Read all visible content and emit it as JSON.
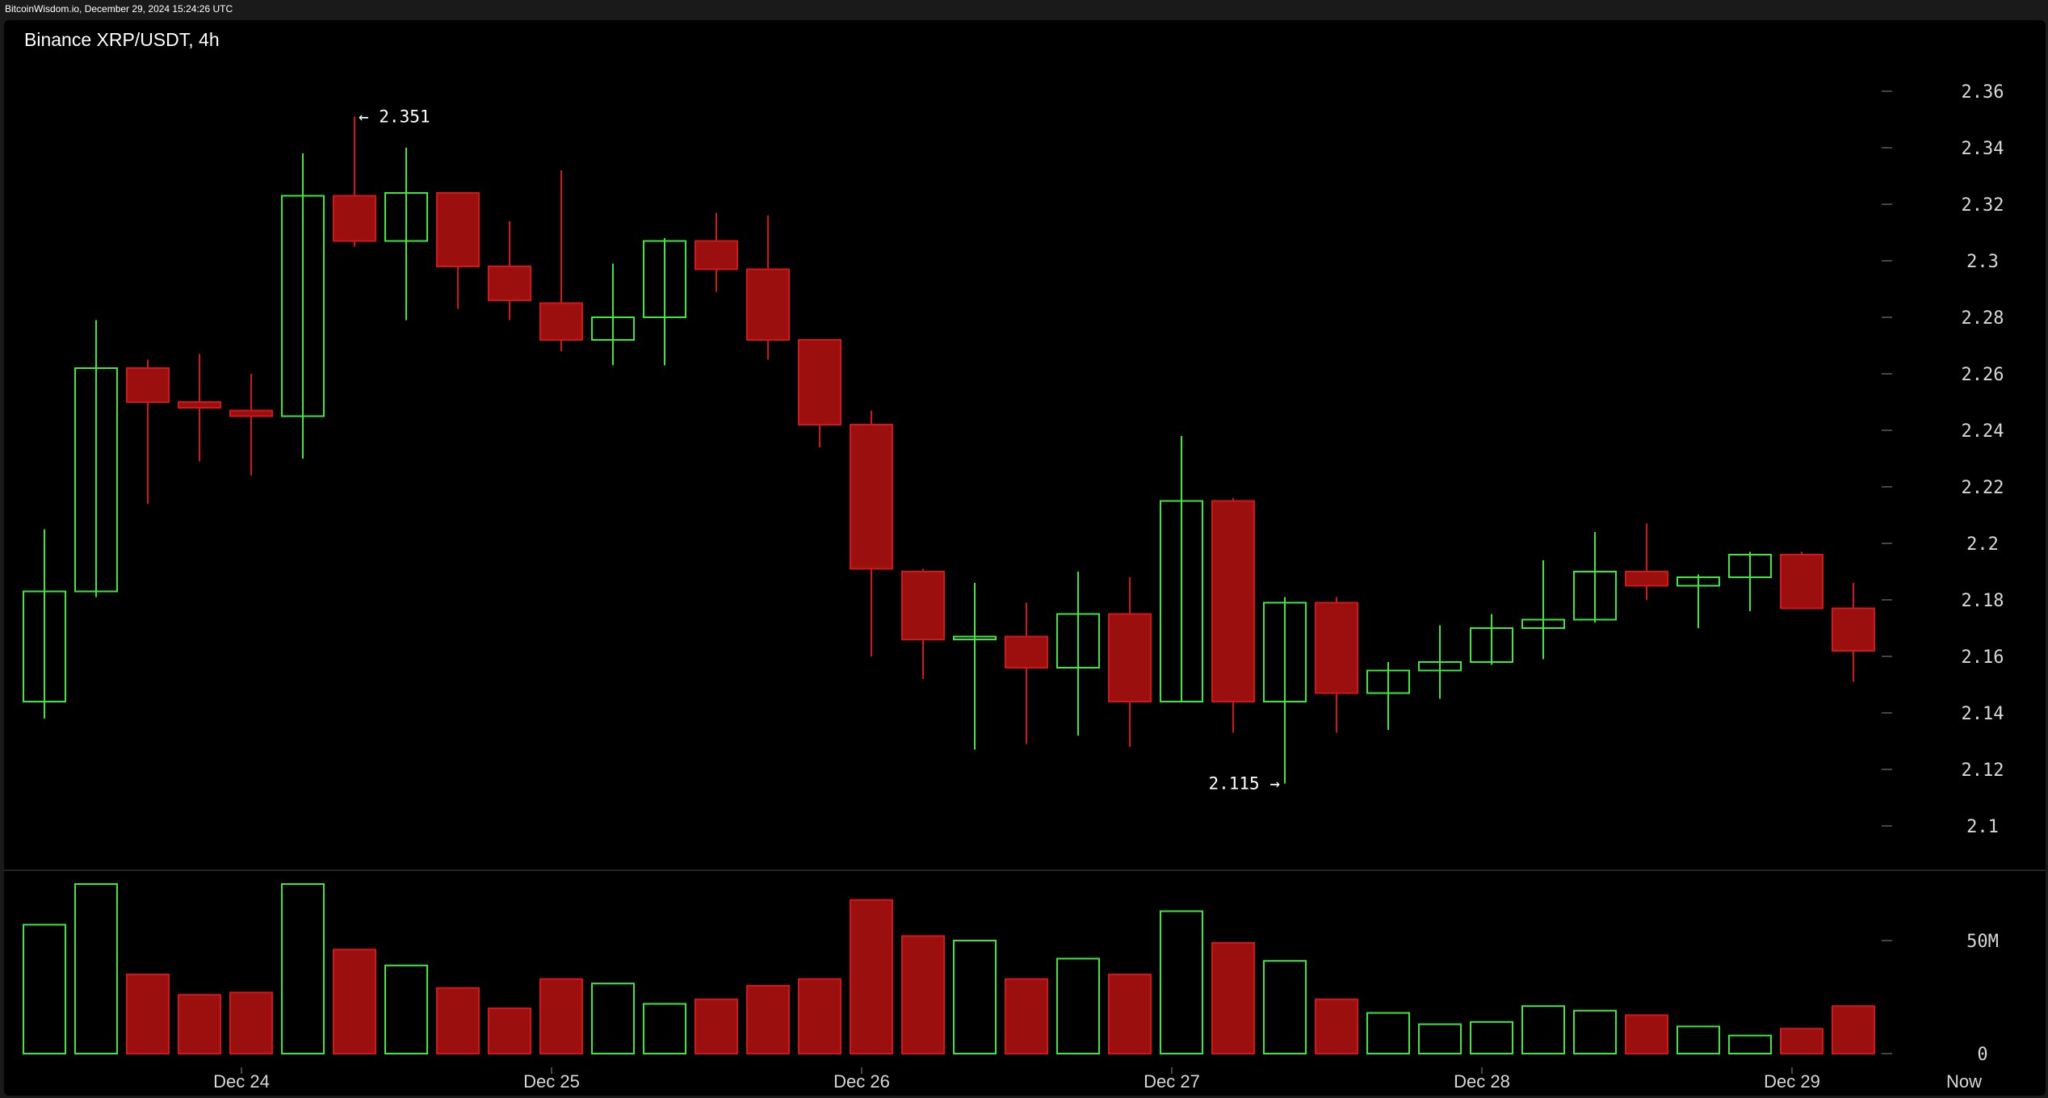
{
  "watermark": "BitcoinWisdom.io, December 29, 2024 15:24:26 UTC",
  "title": "Binance XRP/USDT, 4h",
  "colors": {
    "up": "#3ee63e",
    "down": "#9b0f0f",
    "down_stroke": "#d01818",
    "axis_text": "#d8d8d8",
    "background": "#000000"
  },
  "chart_data": {
    "type": "candlestick",
    "title": "Binance XRP/USDT, 4h",
    "price_axis": {
      "ticks": [
        "2.36",
        "2.34",
        "2.32",
        "2.3",
        "2.28",
        "2.26",
        "2.24",
        "2.22",
        "2.2",
        "2.18",
        "2.16",
        "2.14",
        "2.12",
        "2.1"
      ],
      "range": [
        2.094,
        2.371
      ]
    },
    "volume_axis": {
      "ticks": [
        "50M",
        "0"
      ],
      "tick_values": [
        50,
        0
      ],
      "unit": "M"
    },
    "x_labels": [
      {
        "label": "Dec 24",
        "at_candle": 4
      },
      {
        "label": "Dec 25",
        "at_candle": 10
      },
      {
        "label": "Dec 26",
        "at_candle": 16
      },
      {
        "label": "Dec 27",
        "at_candle": 22
      },
      {
        "label": "Dec 28",
        "at_candle": 28
      },
      {
        "label": "Dec 29",
        "at_candle": 34
      }
    ],
    "now_label": "Now",
    "annotations": {
      "high": {
        "text": "← 2.351",
        "value": 2.351,
        "candle": 6
      },
      "low": {
        "text": "2.115 →",
        "value": 2.115,
        "candle": 24
      }
    },
    "candles": [
      {
        "o": 2.144,
        "h": 2.205,
        "l": 2.138,
        "c": 2.183,
        "v": 57
      },
      {
        "o": 2.183,
        "h": 2.279,
        "l": 2.181,
        "c": 2.262,
        "v": 75
      },
      {
        "o": 2.262,
        "h": 2.265,
        "l": 2.214,
        "c": 2.25,
        "v": 35
      },
      {
        "o": 2.25,
        "h": 2.267,
        "l": 2.229,
        "c": 2.248,
        "v": 26
      },
      {
        "o": 2.247,
        "h": 2.26,
        "l": 2.224,
        "c": 2.245,
        "v": 27
      },
      {
        "o": 2.245,
        "h": 2.338,
        "l": 2.23,
        "c": 2.323,
        "v": 75
      },
      {
        "o": 2.323,
        "h": 2.351,
        "l": 2.305,
        "c": 2.307,
        "v": 46
      },
      {
        "o": 2.307,
        "h": 2.34,
        "l": 2.279,
        "c": 2.324,
        "v": 39
      },
      {
        "o": 2.324,
        "h": 2.324,
        "l": 2.283,
        "c": 2.298,
        "v": 29
      },
      {
        "o": 2.298,
        "h": 2.314,
        "l": 2.279,
        "c": 2.286,
        "v": 20
      },
      {
        "o": 2.285,
        "h": 2.332,
        "l": 2.268,
        "c": 2.272,
        "v": 33
      },
      {
        "o": 2.272,
        "h": 2.299,
        "l": 2.263,
        "c": 2.28,
        "v": 31
      },
      {
        "o": 2.28,
        "h": 2.308,
        "l": 2.263,
        "c": 2.307,
        "v": 22
      },
      {
        "o": 2.307,
        "h": 2.317,
        "l": 2.289,
        "c": 2.297,
        "v": 24
      },
      {
        "o": 2.297,
        "h": 2.316,
        "l": 2.265,
        "c": 2.272,
        "v": 30
      },
      {
        "o": 2.272,
        "h": 2.272,
        "l": 2.234,
        "c": 2.242,
        "v": 33
      },
      {
        "o": 2.242,
        "h": 2.247,
        "l": 2.16,
        "c": 2.191,
        "v": 68
      },
      {
        "o": 2.19,
        "h": 2.191,
        "l": 2.152,
        "c": 2.166,
        "v": 52
      },
      {
        "o": 2.166,
        "h": 2.186,
        "l": 2.127,
        "c": 2.167,
        "v": 50
      },
      {
        "o": 2.167,
        "h": 2.179,
        "l": 2.129,
        "c": 2.156,
        "v": 33
      },
      {
        "o": 2.156,
        "h": 2.19,
        "l": 2.132,
        "c": 2.175,
        "v": 42
      },
      {
        "o": 2.175,
        "h": 2.188,
        "l": 2.128,
        "c": 2.144,
        "v": 35
      },
      {
        "o": 2.144,
        "h": 2.238,
        "l": 2.144,
        "c": 2.215,
        "v": 63
      },
      {
        "o": 2.215,
        "h": 2.216,
        "l": 2.133,
        "c": 2.144,
        "v": 49
      },
      {
        "o": 2.144,
        "h": 2.181,
        "l": 2.115,
        "c": 2.179,
        "v": 41
      },
      {
        "o": 2.179,
        "h": 2.181,
        "l": 2.133,
        "c": 2.147,
        "v": 24
      },
      {
        "o": 2.147,
        "h": 2.158,
        "l": 2.134,
        "c": 2.155,
        "v": 18
      },
      {
        "o": 2.155,
        "h": 2.171,
        "l": 2.145,
        "c": 2.158,
        "v": 13
      },
      {
        "o": 2.158,
        "h": 2.175,
        "l": 2.157,
        "c": 2.17,
        "v": 14
      },
      {
        "o": 2.17,
        "h": 2.194,
        "l": 2.159,
        "c": 2.173,
        "v": 21
      },
      {
        "o": 2.173,
        "h": 2.204,
        "l": 2.172,
        "c": 2.19,
        "v": 19
      },
      {
        "o": 2.19,
        "h": 2.207,
        "l": 2.18,
        "c": 2.185,
        "v": 17
      },
      {
        "o": 2.185,
        "h": 2.189,
        "l": 2.17,
        "c": 2.188,
        "v": 12
      },
      {
        "o": 2.188,
        "h": 2.197,
        "l": 2.176,
        "c": 2.196,
        "v": 8
      },
      {
        "o": 2.196,
        "h": 2.197,
        "l": 2.177,
        "c": 2.177,
        "v": 11
      },
      {
        "o": 2.177,
        "h": 2.186,
        "l": 2.151,
        "c": 2.162,
        "v": 21
      }
    ]
  }
}
